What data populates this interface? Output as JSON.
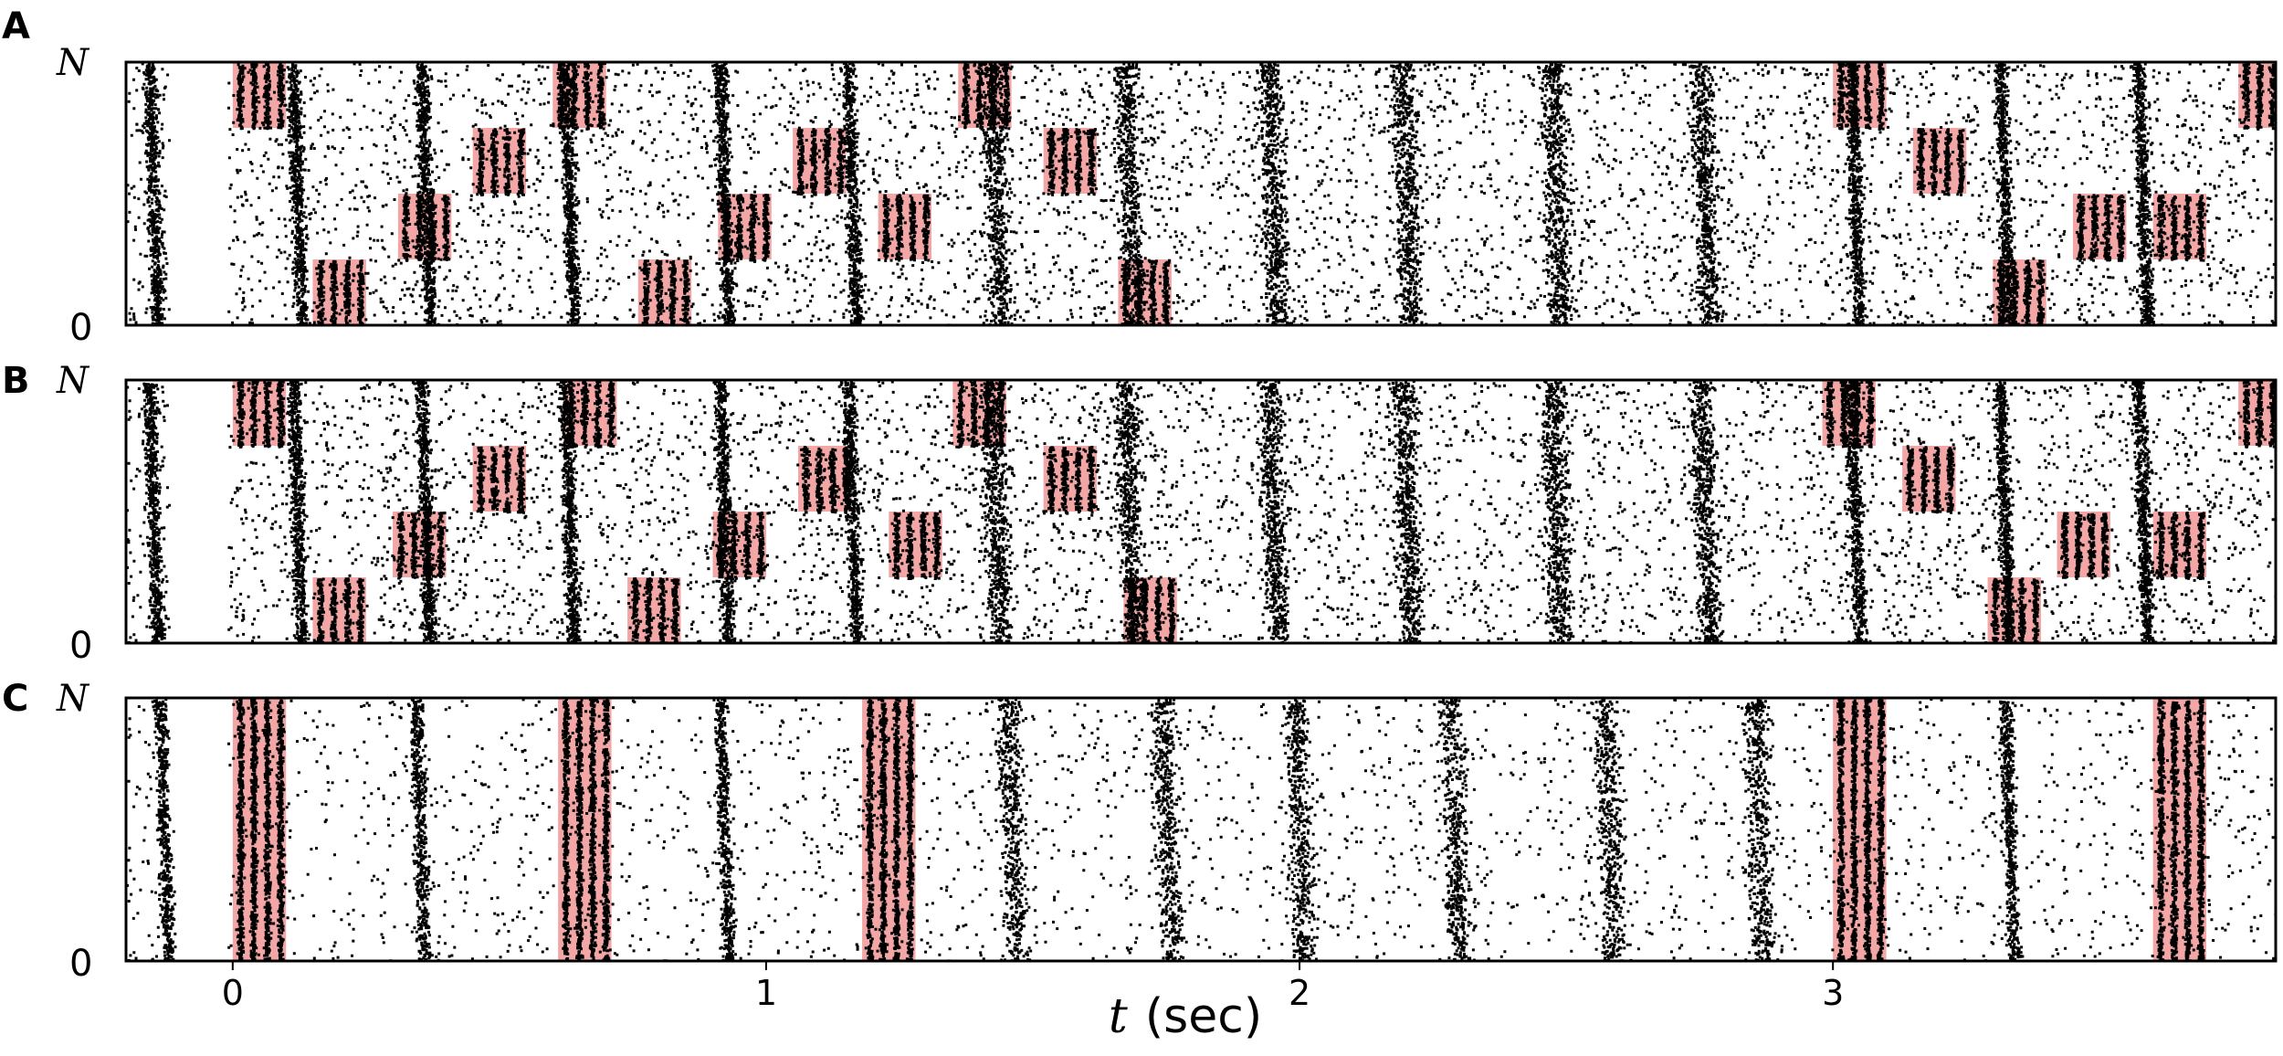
{
  "chart_data": {
    "type": "scatter",
    "subtype": "spike-raster",
    "xlabel_var": "t",
    "xlabel_unit": "(sec)",
    "xlim": [
      -0.2,
      3.83
    ],
    "x_ticks": [
      "0",
      "1",
      "2",
      "3"
    ],
    "y_ticks": [
      "0",
      "N"
    ],
    "highlight_color": "#f2a6a6",
    "spike_color": "#000000",
    "panels": [
      {
        "label": "A",
        "stimuli": [
          {
            "t": 0.0,
            "group": 4
          },
          {
            "t": 0.6,
            "group": 4
          },
          {
            "t": 1.36,
            "group": 4
          },
          {
            "t": 3.0,
            "group": 4
          },
          {
            "t": 3.76,
            "group": 4
          },
          {
            "t": 0.45,
            "group": 3
          },
          {
            "t": 1.05,
            "group": 3
          },
          {
            "t": 1.52,
            "group": 3
          },
          {
            "t": 3.15,
            "group": 3
          },
          {
            "t": 0.31,
            "group": 2
          },
          {
            "t": 0.91,
            "group": 2
          },
          {
            "t": 1.21,
            "group": 2
          },
          {
            "t": 3.45,
            "group": 2
          },
          {
            "t": 3.6,
            "group": 2
          },
          {
            "t": 0.15,
            "group": 1
          },
          {
            "t": 0.76,
            "group": 1
          },
          {
            "t": 1.66,
            "group": 1
          },
          {
            "t": 3.3,
            "group": 1
          }
        ],
        "sync_bands": [
          -0.15,
          0.12,
          0.36,
          0.63,
          0.92,
          1.16,
          1.43,
          1.68,
          1.95,
          2.2,
          2.48,
          2.76,
          3.04,
          3.32,
          3.58
        ]
      },
      {
        "label": "B",
        "stimuli": [
          {
            "t": 0.0,
            "group": 4
          },
          {
            "t": 0.62,
            "group": 4
          },
          {
            "t": 1.35,
            "group": 4
          },
          {
            "t": 2.98,
            "group": 4
          },
          {
            "t": 3.76,
            "group": 4
          },
          {
            "t": 0.45,
            "group": 3
          },
          {
            "t": 1.06,
            "group": 3
          },
          {
            "t": 1.52,
            "group": 3
          },
          {
            "t": 3.13,
            "group": 3
          },
          {
            "t": 0.3,
            "group": 2
          },
          {
            "t": 0.9,
            "group": 2
          },
          {
            "t": 1.23,
            "group": 2
          },
          {
            "t": 3.42,
            "group": 2
          },
          {
            "t": 3.6,
            "group": 2
          },
          {
            "t": 0.15,
            "group": 1
          },
          {
            "t": 0.74,
            "group": 1
          },
          {
            "t": 1.67,
            "group": 1
          },
          {
            "t": 3.29,
            "group": 1
          }
        ],
        "sync_bands": [
          -0.15,
          0.12,
          0.36,
          0.63,
          0.92,
          1.16,
          1.43,
          1.68,
          1.95,
          2.2,
          2.48,
          2.76,
          3.04,
          3.32,
          3.58
        ]
      },
      {
        "label": "C",
        "stimuli": [
          {
            "t": 0.0,
            "group": 0
          },
          {
            "t": 0.61,
            "group": 0
          },
          {
            "t": 1.18,
            "group": 0
          },
          {
            "t": 3.0,
            "group": 0
          },
          {
            "t": 3.6,
            "group": 0
          }
        ],
        "sync_bands": [
          -0.13,
          0.35,
          0.92,
          1.46,
          1.75,
          2.0,
          2.29,
          2.58,
          2.86,
          3.33
        ]
      }
    ]
  }
}
